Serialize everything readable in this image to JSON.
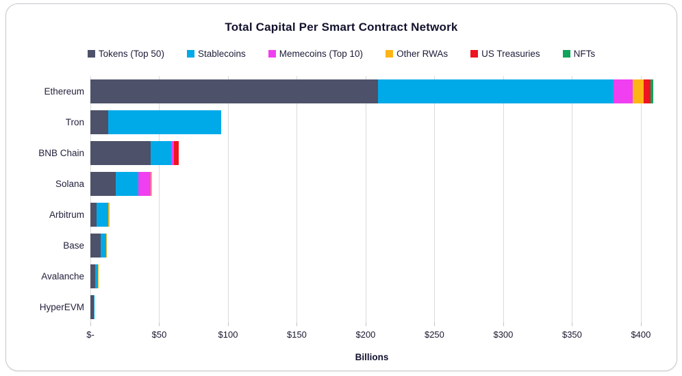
{
  "chart": {
    "title": "Total Capital Per Smart Contract Network",
    "chart_data": {
      "type": "bar",
      "orientation": "horizontal",
      "stacked": true,
      "title": "Total Capital Per Smart Contract Network",
      "xlabel": "Billions",
      "ylabel": "",
      "units": "USD billions",
      "grid": "vertical",
      "legend_position": "top",
      "xlim": [
        0,
        409
      ],
      "categories": [
        "Ethereum",
        "Tron",
        "BNB Chain",
        "Solana",
        "Arbitrum",
        "Base",
        "Avalanche",
        "HyperEVM"
      ],
      "series": [
        {
          "name": "Tokens (Top 50)",
          "color": "#4d5169",
          "values": [
            209,
            13,
            44,
            18.5,
            4.5,
            7.3,
            3.6,
            2.3
          ]
        },
        {
          "name": "Stablecoins",
          "color": "#00a9e8",
          "values": [
            171,
            82,
            14.5,
            16.5,
            8.3,
            4.3,
            1.7,
            0.9
          ]
        },
        {
          "name": "Memecoins (Top 10)",
          "color": "#ef3ff0",
          "values": [
            14,
            0,
            2,
            9,
            0,
            0,
            0,
            0
          ]
        },
        {
          "name": "Other RWAs",
          "color": "#fdb515",
          "values": [
            8,
            0,
            0,
            1,
            0.9,
            0.5,
            0.7,
            0
          ]
        },
        {
          "name": "US Treasuries",
          "color": "#ee1420",
          "values": [
            5,
            0,
            3.5,
            0,
            0,
            0,
            0,
            0
          ]
        },
        {
          "name": "NFTs",
          "color": "#10a45c",
          "values": [
            3,
            0,
            0,
            0,
            0,
            0,
            0,
            0
          ]
        }
      ],
      "x_ticks": [
        {
          "label": "$-",
          "value": 0
        },
        {
          "label": "$50",
          "value": 50
        },
        {
          "label": "$100",
          "value": 100
        },
        {
          "label": "$150",
          "value": 150
        },
        {
          "label": "$200",
          "value": 200
        },
        {
          "label": "$250",
          "value": 250
        },
        {
          "label": "$300",
          "value": 300
        },
        {
          "label": "$350",
          "value": 350
        },
        {
          "label": "$400",
          "value": 400
        }
      ]
    }
  }
}
